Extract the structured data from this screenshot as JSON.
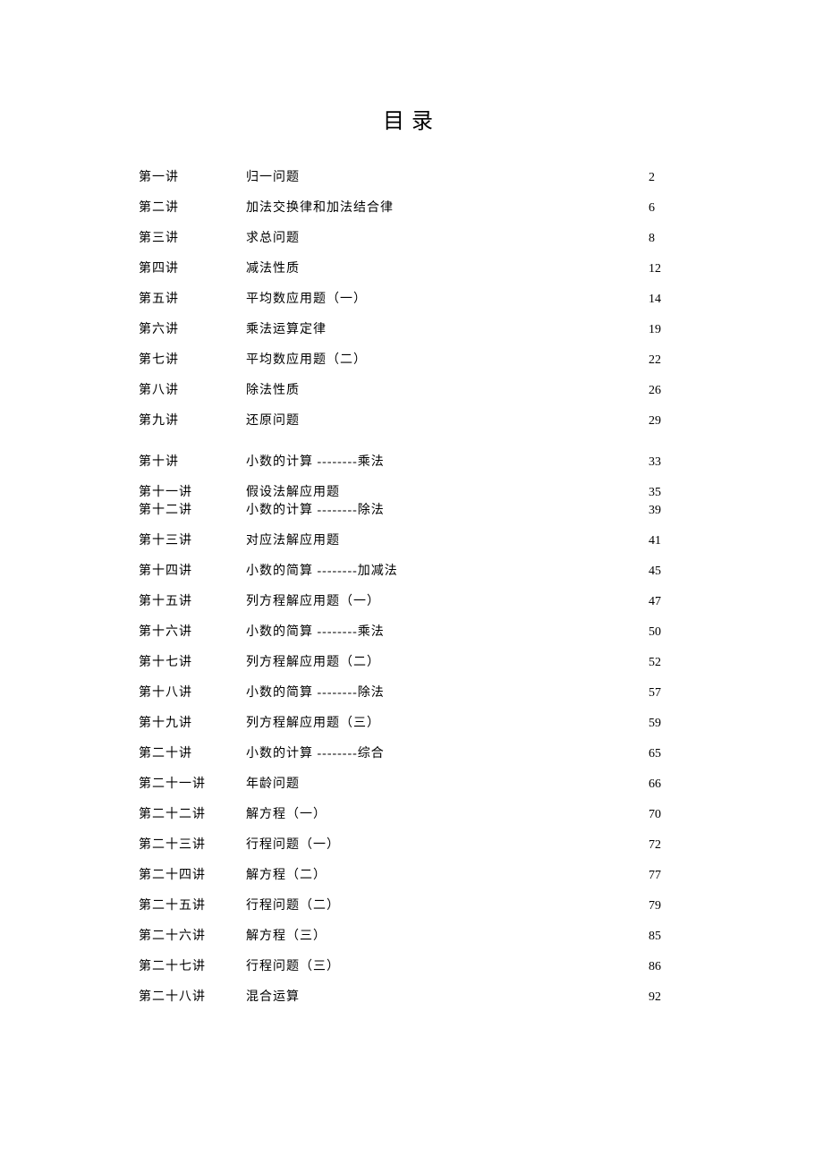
{
  "page_title": "目录",
  "text_color": "#000000",
  "background_color": "#ffffff",
  "title_fontsize": 24,
  "body_fontsize": 14,
  "toc": [
    {
      "no": "第一讲",
      "title": "归一问题",
      "page": "2"
    },
    {
      "no": "第二讲",
      "title": "加法交换律和加法结合律",
      "page": "6"
    },
    {
      "no": "第三讲",
      "title": "求总问题",
      "page": "8"
    },
    {
      "no": "第四讲",
      "title": "减法性质",
      "page": "12"
    },
    {
      "no": "第五讲",
      "title": "平均数应用题（一）",
      "page": "14"
    },
    {
      "no": "第六讲",
      "title": "乘法运算定律",
      "page": "19"
    },
    {
      "no": "第七讲",
      "title": "平均数应用题（二）",
      "page": "22"
    },
    {
      "no": "第八讲",
      "title": "除法性质",
      "page": "26"
    },
    {
      "no": "第九讲",
      "title": "还原问题",
      "page": "29"
    },
    {
      "no": "第十讲",
      "title": "小数的计算 --------乘法",
      "page": "33"
    },
    {
      "no": "第十一讲",
      "title": "假设法解应用题",
      "page": "35"
    },
    {
      "no": "第十二讲",
      "title": "小数的计算 --------除法",
      "page": "39"
    },
    {
      "no": "第十三讲",
      "title": "对应法解应用题",
      "page": "41"
    },
    {
      "no": "第十四讲",
      "title": "小数的简算 --------加减法",
      "page": "45"
    },
    {
      "no": "第十五讲",
      "title": "列方程解应用题（一）",
      "page": "47"
    },
    {
      "no": "第十六讲",
      "title": "小数的简算 --------乘法",
      "page": "50"
    },
    {
      "no": "第十七讲",
      "title": "列方程解应用题（二）",
      "page": "52"
    },
    {
      "no": "第十八讲",
      "title": "小数的简算 --------除法",
      "page": "57"
    },
    {
      "no": "第十九讲",
      "title": "列方程解应用题（三）",
      "page": "59"
    },
    {
      "no": "第二十讲",
      "title": "小数的计算 --------综合",
      "page": "65"
    },
    {
      "no": "第二十一讲",
      "title": "年龄问题",
      "page": "66"
    },
    {
      "no": "第二十二讲",
      "title": "解方程（一）",
      "page": "70"
    },
    {
      "no": "第二十三讲",
      "title": "行程问题（一）",
      "page": "72"
    },
    {
      "no": "第二十四讲",
      "title": "解方程（二）",
      "page": "77"
    },
    {
      "no": "第二十五讲",
      "title": "行程问题（二）",
      "page": "79"
    },
    {
      "no": "第二十六讲",
      "title": "解方程（三）",
      "page": "85"
    },
    {
      "no": "第二十七讲",
      "title": "行程问题（三）",
      "page": "86"
    },
    {
      "no": "第二十八讲",
      "title": "混合运算",
      "page": "92"
    }
  ],
  "tight_pair_index": 11,
  "extra_gap_after_index": 8
}
